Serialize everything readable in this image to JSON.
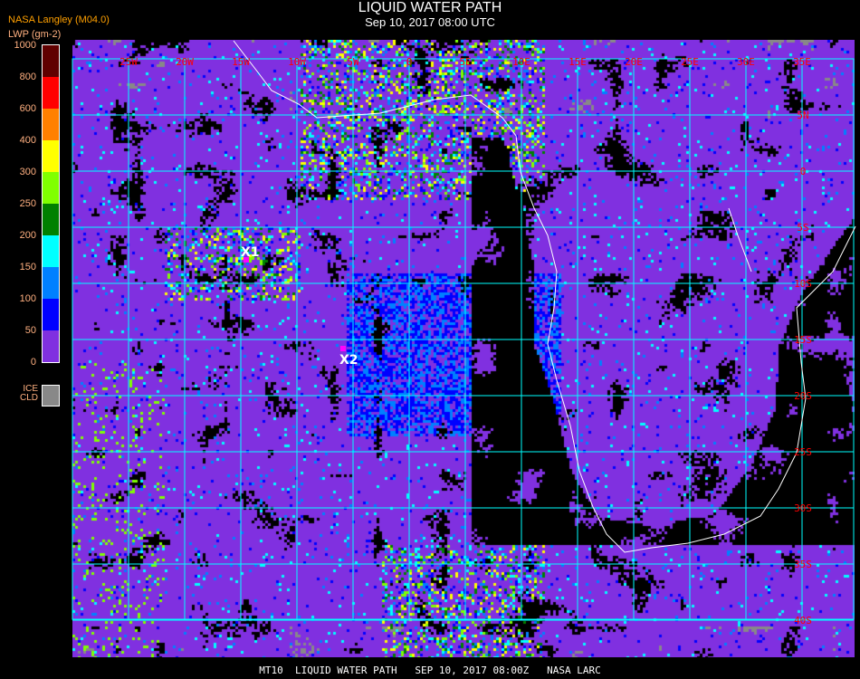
{
  "header": {
    "title": "LIQUID WATER PATH",
    "subtitle": "Sep 10, 2017 08:00 UTC",
    "organization": "NASA Langley (M04.0)"
  },
  "legend": {
    "unit_label": "LWP (gm-2)",
    "ticks": [
      "1000",
      "800",
      "600",
      "400",
      "300",
      "250",
      "200",
      "150",
      "100",
      "50",
      "0"
    ],
    "colors": [
      "#600000",
      "#ff0000",
      "#ff8000",
      "#ffff00",
      "#80ff00",
      "#008000",
      "#00ffff",
      "#0080ff",
      "#0000ff",
      "#8030e0"
    ],
    "ice_label_1": "ICE",
    "ice_label_2": "CLD",
    "ice_color": "#888888"
  },
  "map": {
    "longitude_labels": [
      "25W",
      "20W",
      "15W",
      "10W",
      "5W",
      "0",
      "5E",
      "10E",
      "15E",
      "20E",
      "25E",
      "30E",
      "35E"
    ],
    "latitude_labels": [
      "5N",
      "0",
      "5S",
      "10S",
      "15S",
      "20S",
      "25S",
      "30S",
      "35S",
      "40S"
    ],
    "grid_color": "#00ffff",
    "label_color": "#ff0000",
    "coastline_color": "#ffffff",
    "clear_color": "#000000",
    "markers": [
      {
        "label": "X1",
        "color": "#ff00ff"
      },
      {
        "label": "X2",
        "color": "#ff00ff"
      }
    ]
  },
  "footer": "MT10  LIQUID WATER PATH   SEP 10, 2017 08:00Z   NASA LARC"
}
